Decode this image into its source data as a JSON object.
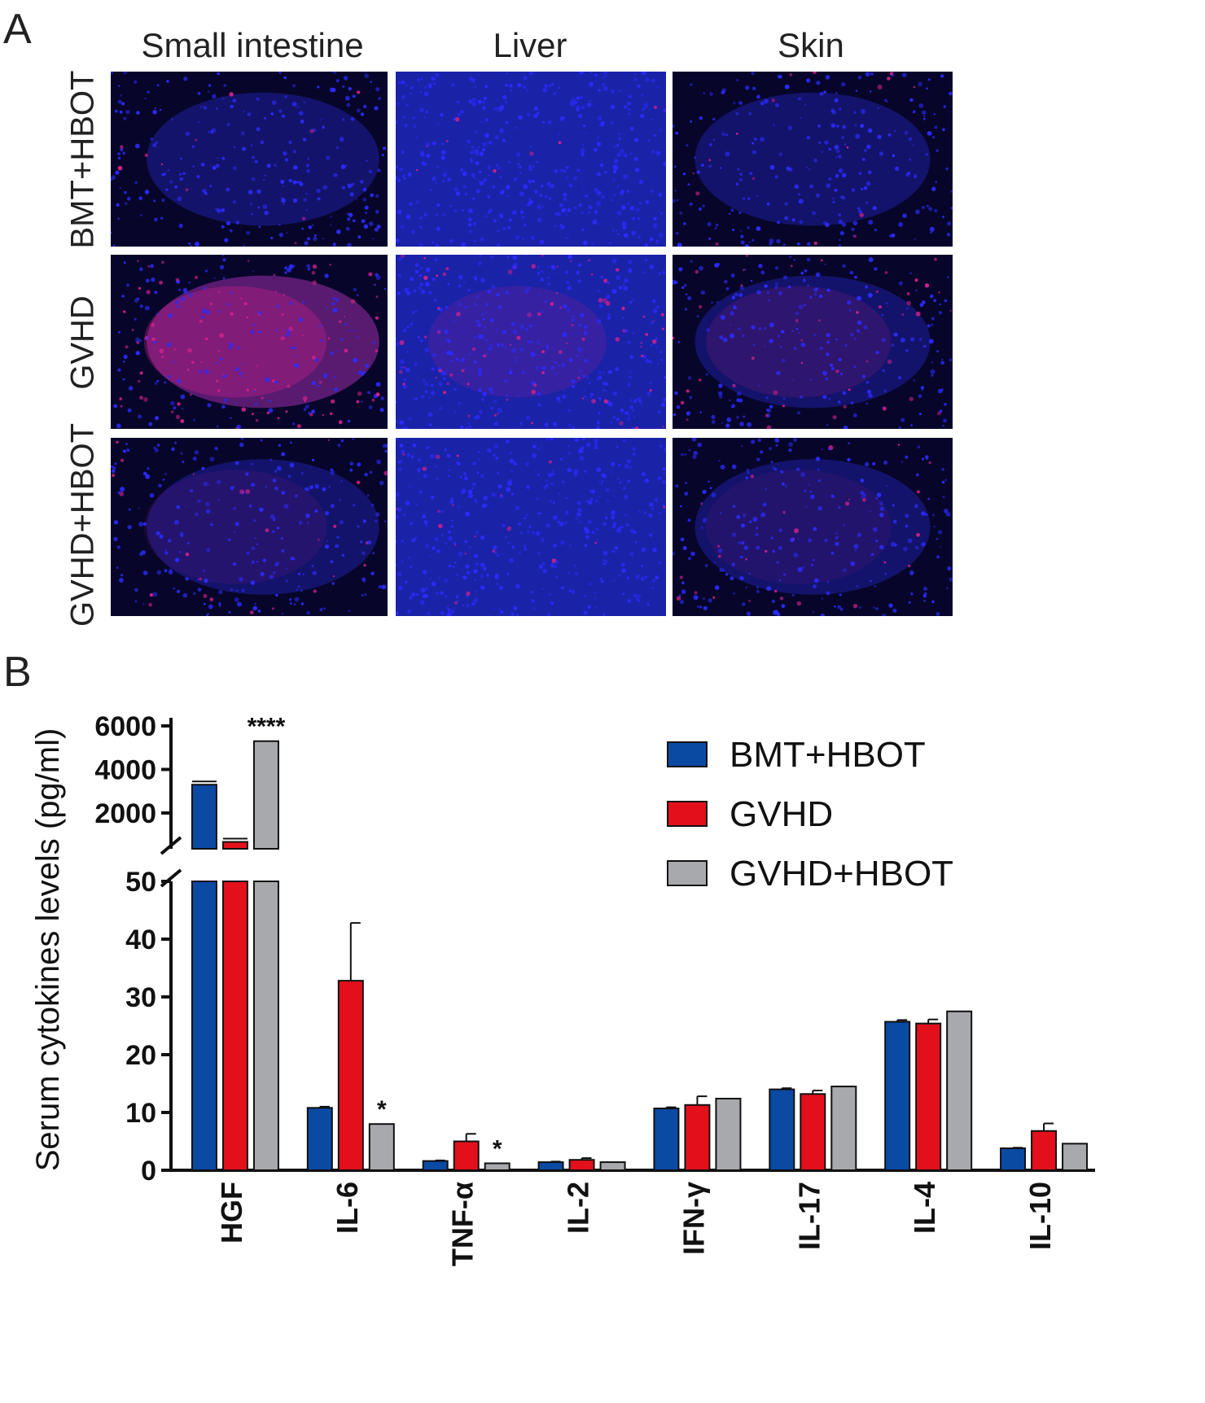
{
  "panel_a": {
    "letter": "A",
    "columns": [
      "Small intestine",
      "Liver",
      "Skin"
    ],
    "rows": [
      "BMT+HBOT",
      "GVHD",
      "GVHD+HBOT"
    ],
    "colors": {
      "nuclei": "#2b2bff",
      "stain": "#d0208a",
      "background": "#07062a"
    }
  },
  "panel_b": {
    "letter": "B",
    "chart_data": {
      "type": "bar",
      "ylabel": "Serum cytokines levels (pg/ml)",
      "categories": [
        "HGF",
        "IL-6",
        "TNF-α",
        "IL-2",
        "IFN-γ",
        "IL-17",
        "IL-4",
        "IL-10"
      ],
      "series": [
        {
          "name": "BMT+HBOT",
          "color": "#0b4aa3",
          "values": [
            3300,
            10.8,
            1.6,
            1.4,
            10.7,
            14.0,
            25.7,
            3.8
          ],
          "errors": [
            60,
            0.2,
            0.1,
            0.1,
            0.2,
            0.2,
            0.3,
            0.1
          ]
        },
        {
          "name": "GVHD",
          "color": "#e3101b",
          "values": [
            350,
            32.8,
            5.0,
            1.8,
            11.3,
            13.2,
            25.4,
            6.8
          ],
          "errors": [
            20,
            10.0,
            1.3,
            0.3,
            1.5,
            0.6,
            0.7,
            1.3
          ]
        },
        {
          "name": "GVHD+HBOT",
          "color": "#a7a9ac",
          "values": [
            5300,
            8.0,
            1.2,
            1.4,
            12.4,
            14.5,
            27.5,
            4.6
          ],
          "errors": [
            0,
            0,
            0,
            0,
            0,
            0,
            0,
            0
          ]
        }
      ],
      "annotations": [
        {
          "category": "HGF",
          "series": "GVHD+HBOT",
          "text": "****"
        },
        {
          "category": "IL-6",
          "series": "GVHD+HBOT",
          "text": "*"
        },
        {
          "category": "TNF-α",
          "series": "GVHD+HBOT",
          "text": "*"
        }
      ],
      "y_lower": {
        "range": [
          0,
          50
        ],
        "ticks": [
          "0",
          "10",
          "20",
          "30",
          "40",
          "50"
        ]
      },
      "y_upper": {
        "range": [
          0,
          6000
        ],
        "ticks": [
          "2000",
          "4000",
          "6000"
        ]
      },
      "axis_break": true,
      "legend_position": "top-right"
    }
  }
}
